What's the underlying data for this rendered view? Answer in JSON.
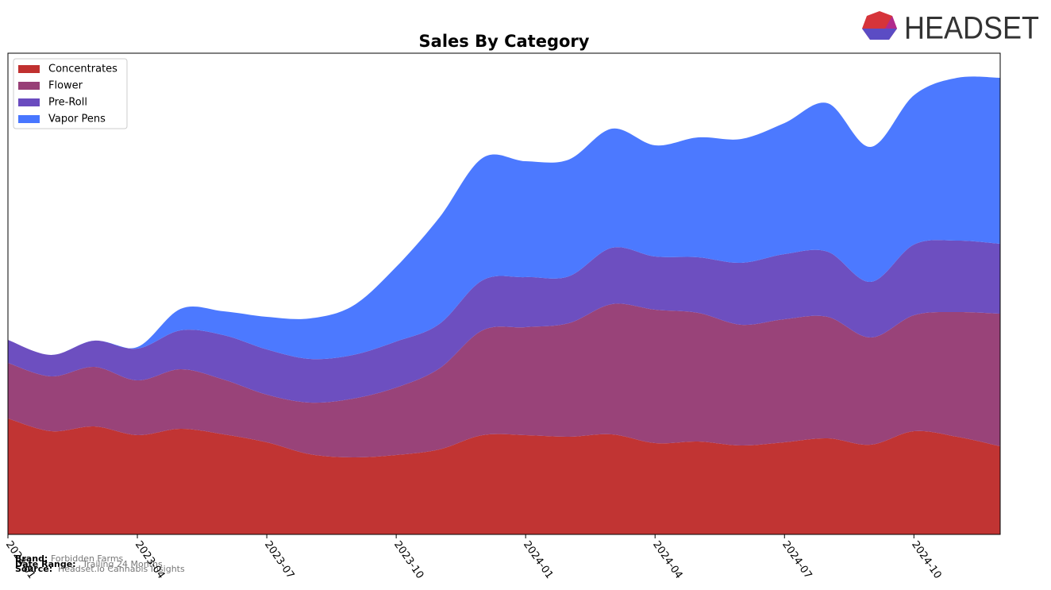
{
  "chart_data": {
    "type": "stacked-area",
    "title": "Sales By Category",
    "x": [
      "2023-01",
      "2023-02",
      "2023-03",
      "2023-04",
      "2023-05",
      "2023-06",
      "2023-07",
      "2023-08",
      "2023-09",
      "2023-10",
      "2023-11",
      "2023-12",
      "2024-01",
      "2024-02",
      "2024-03",
      "2024-04",
      "2024-05",
      "2024-06",
      "2024-07",
      "2024-08",
      "2024-09",
      "2024-10",
      "2024-11",
      "2024-12"
    ],
    "xticks": [
      "2023-01",
      "2023-04",
      "2023-07",
      "2023-10",
      "2024-01",
      "2024-04",
      "2024-07",
      "2024-10"
    ],
    "ylim": [
      0,
      606
    ],
    "legend": "upper left",
    "series": [
      {
        "name": "Concentrates",
        "color": "#c0302f",
        "values": [
          146,
          130,
          136,
          125,
          133,
          126,
          116,
          101,
          97,
          100,
          107,
          125,
          125,
          123,
          126,
          115,
          117,
          112,
          116,
          121,
          113,
          130,
          123,
          111
        ]
      },
      {
        "name": "Flower",
        "color": "#973f76",
        "values": [
          70,
          69,
          75,
          69,
          75,
          69,
          60,
          65,
          74,
          85,
          102,
          132,
          136,
          143,
          164,
          168,
          162,
          152,
          155,
          153,
          135,
          146,
          157,
          167
        ]
      },
      {
        "name": "Pre-Roll",
        "color": "#6a4bbf",
        "values": [
          29,
          27,
          33,
          40,
          49,
          56,
          57,
          55,
          55,
          58,
          56,
          63,
          63,
          59,
          71,
          67,
          70,
          78,
          82,
          82,
          70,
          89,
          90,
          88
        ]
      },
      {
        "name": "Vapor Pens",
        "color": "#4876ff",
        "values": [
          0,
          0,
          0,
          2,
          27,
          30,
          41,
          51,
          62,
          94,
          134,
          154,
          146,
          147,
          150,
          140,
          151,
          156,
          165,
          187,
          170,
          188,
          205,
          209
        ]
      }
    ]
  },
  "logo": "HEADSET",
  "footer": {
    "brand_label": "Brand:",
    "brand": "Forbidden Farms",
    "date_label": "Date Range:",
    "date": "Trailing 24 Months",
    "source_label": "Source:",
    "source": "Headset.io Cannabis Insights"
  }
}
